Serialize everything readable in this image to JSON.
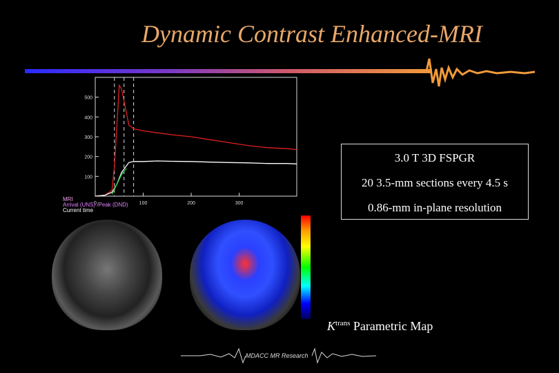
{
  "slide": {
    "title": "Dynamic Contrast Enhanced-MRI",
    "info_lines": [
      "3.0 T 3D FSPGR",
      "20 3.5-mm sections every 4.5 s",
      "0.86-mm in-plane resolution"
    ],
    "caption_k": "K",
    "caption_sup": "trans",
    "caption_rest": " Parametric Map",
    "footer": "MDACC MR Research",
    "colors": {
      "title": "#e8a86a",
      "rule_start": "#2a2aff",
      "rule_end": "#f29a3a"
    }
  },
  "chart_data": {
    "type": "line",
    "x_ticks": [
      "0",
      "100",
      "200",
      "300"
    ],
    "y_ticks": [
      "100",
      "200",
      "300",
      "400",
      "500"
    ],
    "xlim": [
      0,
      420
    ],
    "ylim": [
      0,
      600
    ],
    "legend": {
      "line1": "MRI",
      "line2a": "Arrival (UNS)",
      "line2b": " /Peak (DND)",
      "line3": "Current time"
    },
    "vlines": [
      40,
      60,
      80
    ],
    "series": [
      {
        "color": "#e02020",
        "x": [
          0,
          20,
          35,
          40,
          45,
          50,
          55,
          60,
          70,
          80,
          100,
          130,
          160,
          200,
          240,
          280,
          320,
          360,
          400,
          420
        ],
        "y": [
          0,
          5,
          30,
          150,
          350,
          560,
          540,
          480,
          360,
          340,
          330,
          320,
          310,
          300,
          285,
          270,
          255,
          245,
          240,
          235
        ]
      },
      {
        "color": "#ffffff",
        "x": [
          0,
          20,
          35,
          45,
          55,
          70,
          80,
          100,
          130,
          160,
          200,
          240,
          280,
          320,
          360,
          400,
          420
        ],
        "y": [
          0,
          5,
          20,
          60,
          120,
          170,
          175,
          175,
          178,
          176,
          175,
          172,
          170,
          168,
          165,
          165,
          163
        ]
      },
      {
        "color": "#30d040",
        "x": [
          35,
          45,
          55,
          65
        ],
        "y": [
          10,
          60,
          110,
          140
        ]
      }
    ]
  }
}
